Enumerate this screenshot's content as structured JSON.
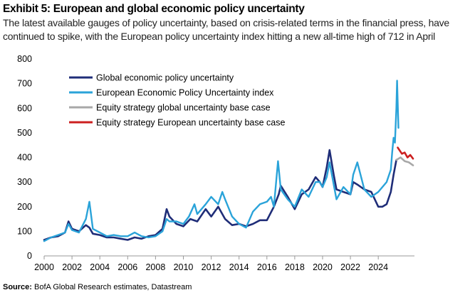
{
  "header": {
    "title": "Exhibit 5: European and global economic policy uncertainty",
    "subtitle": "The latest available gauges of policy uncertainty, based on crisis-related terms in the financial press, have continued to spike, with the European policy uncertainty index hitting a new all-time high of 712 in April"
  },
  "footer": {
    "source_label": "Source:",
    "source_text": "BofA Global Research estimates, Datastream"
  },
  "colors": {
    "global": "#1f2d78",
    "european": "#2aa3d9",
    "global_base": "#a8a8a8",
    "european_base": "#cc1f1f",
    "axis": "#999999"
  },
  "chart_data": {
    "type": "line",
    "title": "Exhibit 5: European and global economic policy uncertainty",
    "xlabel": "",
    "ylabel": "",
    "xlim": [
      2000,
      2026.6
    ],
    "ylim": [
      0,
      800
    ],
    "xticks": [
      "2000",
      "2002",
      "2004",
      "2006",
      "2008",
      "2010",
      "2012",
      "2014",
      "2016",
      "2018",
      "2020",
      "2022",
      "2024"
    ],
    "yticks": [
      "0",
      "100",
      "200",
      "300",
      "400",
      "500",
      "600",
      "700",
      "800"
    ],
    "legend_position": "top-left",
    "grid": false,
    "series": [
      {
        "name": "Global economic policy uncertainty",
        "color_key": "global",
        "x": [
          2000.0,
          2000.5,
          2001.0,
          2001.5,
          2001.75,
          2002.0,
          2002.5,
          2003.0,
          2003.25,
          2003.5,
          2004.0,
          2004.5,
          2005.0,
          2005.5,
          2006.0,
          2006.5,
          2007.0,
          2007.5,
          2008.0,
          2008.5,
          2008.8,
          2009.0,
          2009.5,
          2010.0,
          2010.5,
          2011.0,
          2011.6,
          2012.0,
          2012.5,
          2013.0,
          2013.5,
          2014.0,
          2014.5,
          2015.0,
          2015.5,
          2016.0,
          2016.5,
          2016.85,
          2017.0,
          2017.5,
          2018.0,
          2018.5,
          2019.0,
          2019.5,
          2019.8,
          2020.0,
          2020.3,
          2020.5,
          2020.8,
          2021.0,
          2021.5,
          2022.0,
          2022.2,
          2022.5,
          2023.0,
          2023.5,
          2024.0,
          2024.3,
          2024.6,
          2024.9,
          2025.1,
          2025.3
        ],
        "y": [
          65,
          75,
          80,
          95,
          140,
          110,
          100,
          125,
          115,
          90,
          85,
          75,
          75,
          70,
          65,
          75,
          70,
          80,
          85,
          110,
          190,
          160,
          130,
          120,
          150,
          140,
          190,
          160,
          200,
          150,
          125,
          130,
          120,
          130,
          145,
          145,
          200,
          250,
          285,
          240,
          190,
          250,
          270,
          320,
          300,
          280,
          360,
          430,
          330,
          270,
          260,
          250,
          300,
          290,
          270,
          260,
          200,
          200,
          210,
          260,
          330,
          390
        ]
      },
      {
        "name": "European Economic Policy Uncertainty index",
        "color_key": "european",
        "x": [
          2000.0,
          2000.5,
          2001.0,
          2001.5,
          2001.75,
          2002.0,
          2002.5,
          2003.0,
          2003.25,
          2003.5,
          2004.0,
          2004.5,
          2005.0,
          2005.5,
          2006.0,
          2006.5,
          2007.0,
          2007.5,
          2008.0,
          2008.5,
          2008.8,
          2009.0,
          2009.5,
          2010.0,
          2010.4,
          2010.8,
          2011.0,
          2011.6,
          2012.0,
          2012.5,
          2012.8,
          2013.0,
          2013.5,
          2014.0,
          2014.5,
          2015.0,
          2015.5,
          2016.0,
          2016.3,
          2016.5,
          2016.8,
          2017.0,
          2017.5,
          2018.0,
          2018.5,
          2019.0,
          2019.5,
          2019.8,
          2020.0,
          2020.3,
          2020.5,
          2020.8,
          2021.0,
          2021.5,
          2022.0,
          2022.2,
          2022.5,
          2023.0,
          2023.5,
          2024.0,
          2024.3,
          2024.6,
          2024.9,
          2025.0,
          2025.1,
          2025.2,
          2025.3,
          2025.35,
          2025.45
        ],
        "y": [
          60,
          75,
          85,
          95,
          130,
          105,
          95,
          150,
          220,
          110,
          95,
          80,
          85,
          80,
          80,
          95,
          80,
          75,
          80,
          100,
          150,
          140,
          140,
          130,
          160,
          210,
          170,
          210,
          240,
          210,
          260,
          230,
          160,
          130,
          115,
          180,
          210,
          220,
          240,
          200,
          385,
          270,
          230,
          200,
          270,
          240,
          300,
          300,
          280,
          320,
          380,
          290,
          230,
          280,
          250,
          330,
          380,
          270,
          240,
          260,
          280,
          300,
          350,
          420,
          480,
          460,
          600,
          712,
          520
        ]
      },
      {
        "name": "Equity strategy global uncertainty base case",
        "color_key": "global_base",
        "x": [
          2025.3,
          2025.6,
          2025.9,
          2026.2,
          2026.5
        ],
        "y": [
          390,
          400,
          385,
          380,
          368
        ]
      },
      {
        "name": "Equity strategy European uncertainty base case",
        "color_key": "european_base",
        "x": [
          2025.4,
          2025.7,
          2025.9,
          2026.1,
          2026.3,
          2026.5
        ],
        "y": [
          440,
          415,
          420,
          400,
          410,
          395
        ]
      }
    ]
  }
}
